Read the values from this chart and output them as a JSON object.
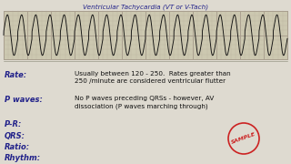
{
  "title": "Ventricular Tachycardia (VT or V-Tach)",
  "bg_color": "#dedad0",
  "ecg_bg": "#ccc8b0",
  "grid_major_color": "#aaa090",
  "grid_minor_color": "#bbb5a0",
  "ecg_line_color": "#111111",
  "text_color_label": "#22228a",
  "text_color_body": "#111111",
  "rate_label": "Rate:",
  "rate_text": "Usually between 120 - 250.  Rates greater than\n250 /minute are considered ventricular flutter",
  "pwaves_label": "P waves:",
  "pwaves_text": "No P waves preceding QRSs - however, AV\ndissociation (P waves marching through)",
  "pr_label": "P-R:",
  "qrs_label": "QRS:",
  "ratio_label": "Ratio:",
  "rhythm_label": "Rhythm:",
  "stamp_color": "#cc2222",
  "stamp_text": "SAMPLE"
}
